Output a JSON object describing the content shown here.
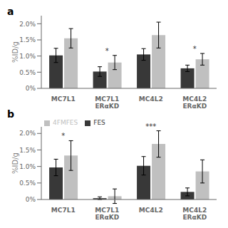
{
  "chart_data": [
    {
      "type": "bar",
      "title": "a",
      "categories": [
        "MC7L1",
        "MC7L1\nERαKD",
        "MC4L2",
        "MC4L2\nERαKD"
      ],
      "series": [
        {
          "color": "#383838",
          "values": [
            0.0102,
            0.0052,
            0.0105,
            0.0062
          ],
          "errors": [
            0.0022,
            0.0015,
            0.0018,
            0.001
          ]
        },
        {
          "color": "#c0c0c0",
          "values": [
            0.0155,
            0.008,
            0.0165,
            0.009
          ],
          "errors": [
            0.003,
            0.0022,
            0.004,
            0.0018
          ]
        }
      ],
      "y_label": "%ID/g",
      "ylim": [
        0,
        0.0225
      ],
      "yticks": [
        {
          "value": 0,
          "label": "0%"
        },
        {
          "value": 0.005,
          "label": "0.5%"
        },
        {
          "value": 0.01,
          "label": "1.0%"
        },
        {
          "value": 0.015,
          "label": "1.5%"
        },
        {
          "value": 0.02,
          "label": "2.0%"
        }
      ],
      "annotations": [
        null,
        "*",
        null,
        "*"
      ],
      "grid": false
    },
    {
      "type": "bar",
      "title": "b",
      "categories": [
        "MC7L1",
        "MC7L1\nERαKD",
        "MC4L2",
        "MC4L2\nERαKD"
      ],
      "series": [
        {
          "name": "FES",
          "color": "#383838",
          "values": [
            0.0097,
            0.0004,
            0.0102,
            0.0023
          ],
          "errors": [
            0.0025,
            0.0004,
            0.0028,
            0.0012
          ]
        },
        {
          "name": "4FMFES",
          "color": "#c0c0c0",
          "values": [
            0.0133,
            0.001,
            0.0168,
            0.0085
          ],
          "errors": [
            0.0045,
            0.0022,
            0.004,
            0.0035
          ]
        }
      ],
      "y_label": "%ID/g",
      "ylim": [
        0,
        0.022
      ],
      "yticks": [
        {
          "value": 0,
          "label": "0%"
        },
        {
          "value": 0.005,
          "label": "0.5%"
        },
        {
          "value": 0.01,
          "label": "1.0%"
        },
        {
          "value": 0.015,
          "label": "1.5%"
        },
        {
          "value": 0.02,
          "label": "2.0%"
        }
      ],
      "annotations": [
        "*",
        null,
        "***",
        null
      ],
      "legend": "upper left",
      "grid": false
    }
  ]
}
